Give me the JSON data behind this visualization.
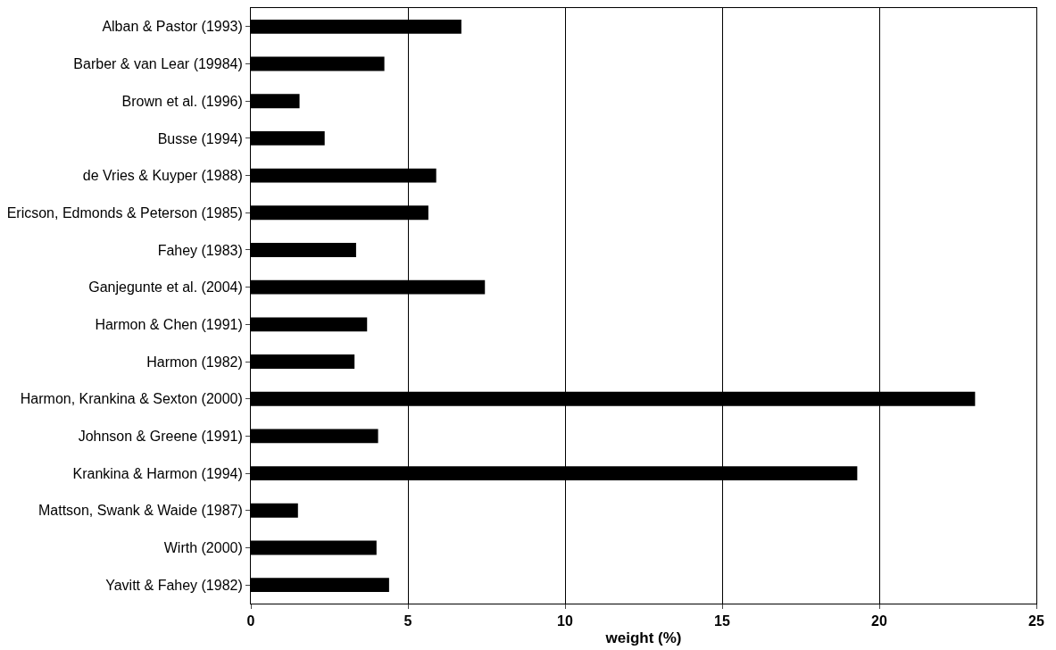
{
  "chart_data": {
    "type": "bar",
    "orientation": "horizontal",
    "xlabel": "weight (%)",
    "categories": [
      "Alban & Pastor (1993)",
      "Barber & van Lear (19984)",
      "Brown et al. (1996)",
      "Busse (1994)",
      "de Vries & Kuyper (1988)",
      "Ericson, Edmonds & Peterson (1985)",
      "Fahey (1983)",
      "Ganjegunte et al. (2004)",
      "Harmon & Chen (1991)",
      "Harmon (1982)",
      "Harmon, Krankina & Sexton (2000)",
      "Johnson & Greene (1991)",
      "Krankina & Harmon (1994)",
      "Mattson, Swank & Waide (1987)",
      "Wirth (2000)",
      "Yavitt & Fahey (1982)"
    ],
    "values": [
      6.7,
      4.25,
      1.55,
      2.35,
      5.9,
      5.65,
      3.35,
      7.45,
      3.7,
      3.3,
      23.05,
      4.05,
      19.3,
      1.5,
      4.0,
      4.4
    ],
    "color": "#000000",
    "xlim": [
      0,
      25
    ],
    "xticks": [
      0,
      5,
      10,
      15,
      20,
      25
    ],
    "grid": "x"
  }
}
